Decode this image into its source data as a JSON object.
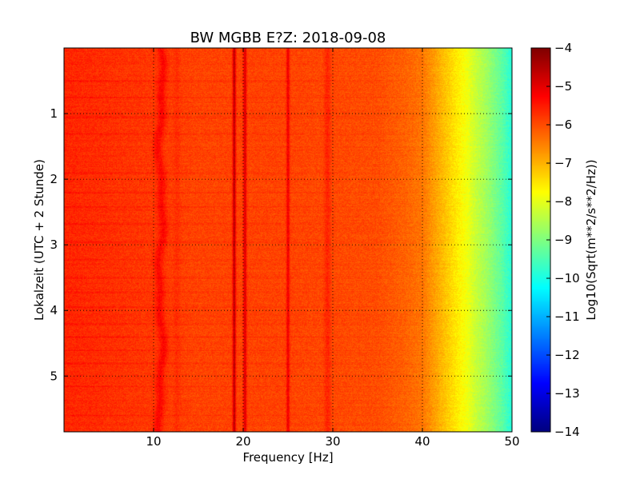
{
  "chart_data": {
    "type": "heatmap",
    "title": "BW MGBB E?Z: 2018-09-08",
    "xlabel": "Frequency [Hz]",
    "ylabel": "Lokalzeit (UTC + 2 Stunde)",
    "xlim": [
      0,
      50
    ],
    "ylim": [
      5.85,
      0
    ],
    "x_ticks": [
      10,
      20,
      30,
      40,
      50
    ],
    "x_tick_labels": [
      "10",
      "20",
      "30",
      "40",
      "50"
    ],
    "y_ticks": [
      1,
      2,
      3,
      4,
      5
    ],
    "y_tick_labels": [
      "1",
      "2",
      "3",
      "4",
      "5"
    ],
    "grid": true,
    "colormap": "jet",
    "colorbar": {
      "label": "Log10(Sqrt(m**2/s**2/Hz))",
      "range": [
        -14,
        -4
      ],
      "ticks": [
        -4,
        -5,
        -6,
        -7,
        -8,
        -9,
        -10,
        -11,
        -12,
        -13,
        -14
      ],
      "tick_labels": [
        "−4",
        "−5",
        "−6",
        "−7",
        "−8",
        "−9",
        "−10",
        "−11",
        "−12",
        "−13",
        "−14"
      ]
    },
    "spectral_profile": {
      "frequency_hz": [
        0,
        5,
        10,
        15,
        20,
        25,
        30,
        35,
        38,
        40,
        41,
        42,
        43,
        44,
        45,
        46,
        47,
        48,
        49,
        50
      ],
      "log10_amplitude": [
        -5.6,
        -5.7,
        -5.8,
        -5.9,
        -5.9,
        -5.9,
        -5.95,
        -6.0,
        -6.2,
        -6.4,
        -6.7,
        -7.0,
        -7.3,
        -7.6,
        -7.9,
        -8.3,
        -8.6,
        -9.0,
        -9.4,
        -9.9
      ]
    },
    "spectral_lines": [
      {
        "frequency_hz": 10.8,
        "log10_amplitude": -5.3,
        "type": "wobbling"
      },
      {
        "frequency_hz": 12.6,
        "log10_amplitude": -5.7,
        "type": "faint"
      },
      {
        "frequency_hz": 19.0,
        "log10_amplitude": -4.6,
        "type": "sharp"
      },
      {
        "frequency_hz": 20.2,
        "log10_amplitude": -4.9,
        "type": "sharp"
      },
      {
        "frequency_hz": 25.0,
        "log10_amplitude": -5.1,
        "type": "sharp"
      },
      {
        "frequency_hz": 29.4,
        "log10_amplitude": -5.6,
        "type": "faint"
      }
    ],
    "time_events_hours": [
      0.5,
      0.75,
      1.05,
      1.3,
      1.9,
      2.2,
      2.42,
      2.68,
      2.95,
      3.22,
      3.5,
      3.72,
      3.95,
      4.2,
      4.4,
      4.6,
      4.8,
      5.15,
      5.6
    ]
  }
}
